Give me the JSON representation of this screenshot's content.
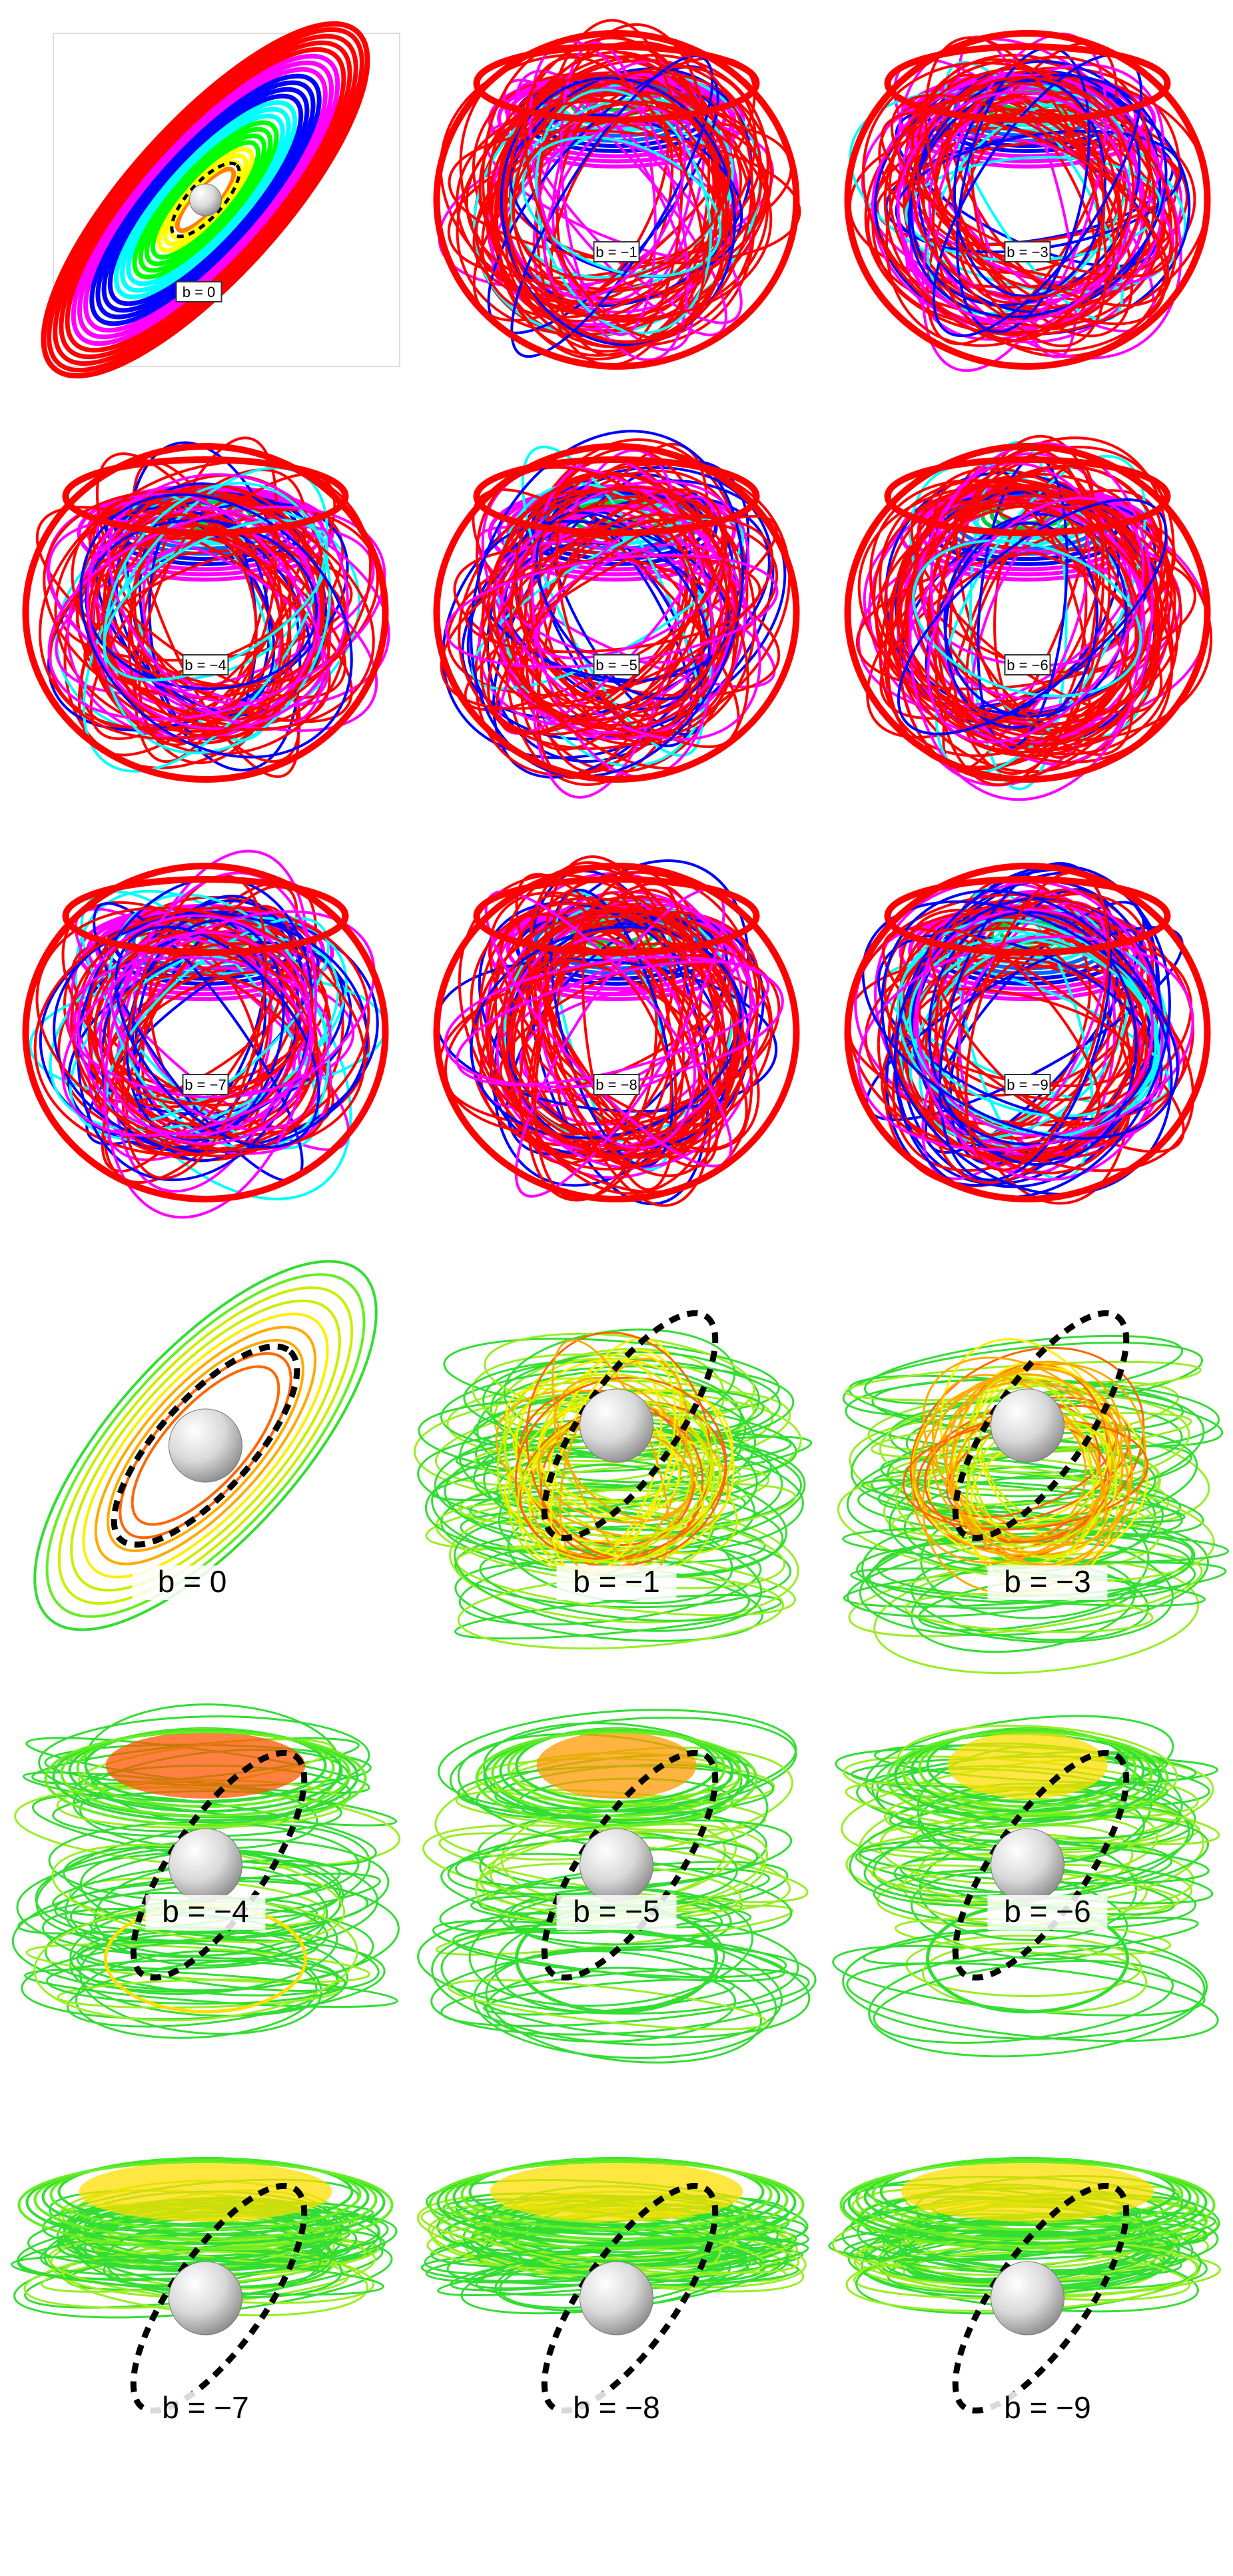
{
  "figure": {
    "top_set": {
      "panels": [
        {
          "label": "b = 0"
        },
        {
          "label": "b = −1"
        },
        {
          "label": "b = −3"
        },
        {
          "label": "b = −4"
        },
        {
          "label": "b = −5"
        },
        {
          "label": "b = −6"
        },
        {
          "label": "b = −7"
        },
        {
          "label": "b = −8"
        },
        {
          "label": "b = −9"
        }
      ],
      "palette": [
        "#ff0000",
        "#ff00ff",
        "#0000ff",
        "#00ffff",
        "#00ff00",
        "#ffff00",
        "#ff8000"
      ],
      "outer_color": "#ff0000"
    },
    "bottom_set": {
      "panels": [
        {
          "label": "b = 0"
        },
        {
          "label": "b = −1"
        },
        {
          "label": "b = −3"
        },
        {
          "label": "b = −4"
        },
        {
          "label": "b = −5"
        },
        {
          "label": "b = −6"
        },
        {
          "label": "b = −7"
        },
        {
          "label": "b = −8"
        },
        {
          "label": "b = −9"
        }
      ],
      "palette": [
        "#33dd33",
        "#66ee22",
        "#ccee00",
        "#ffee00",
        "#ffaa00",
        "#ff6600"
      ],
      "orbit_color": "#000000",
      "sphere_color": "#f2f2f2"
    }
  }
}
